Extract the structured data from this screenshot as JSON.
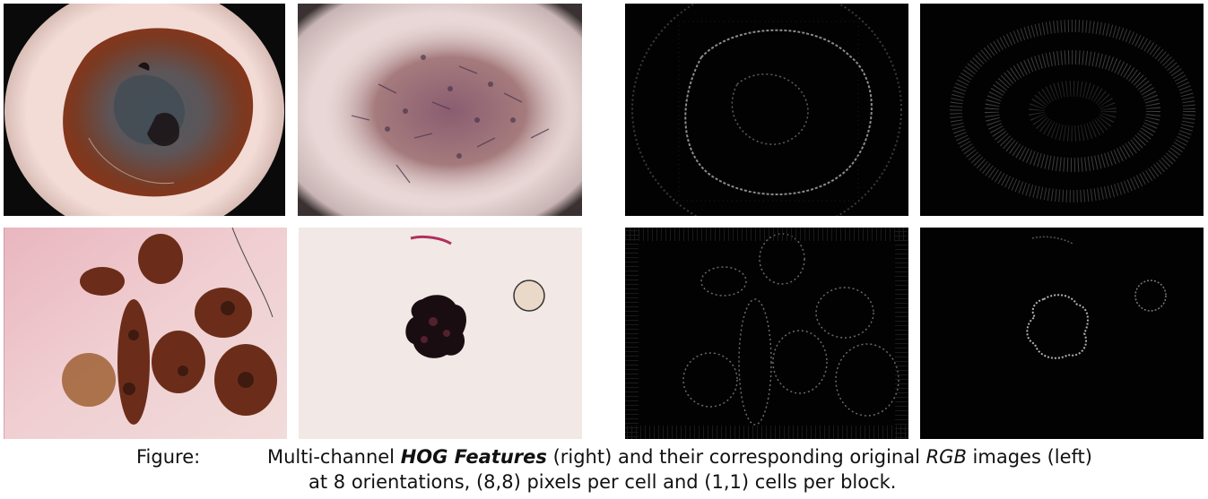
{
  "figure": {
    "images": [
      {
        "kind": "rgb",
        "icon": "dermoscopy-lesion-1"
      },
      {
        "kind": "rgb",
        "icon": "dermoscopy-lesion-2"
      },
      {
        "kind": "hog",
        "icon": "hog-feature-map-1"
      },
      {
        "kind": "hog",
        "icon": "hog-feature-map-2"
      },
      {
        "kind": "rgb",
        "icon": "dermoscopy-lesion-3"
      },
      {
        "kind": "rgb",
        "icon": "dermoscopy-lesion-4"
      },
      {
        "kind": "hog",
        "icon": "hog-feature-map-3"
      },
      {
        "kind": "hog",
        "icon": "hog-feature-map-4"
      }
    ]
  },
  "caption": {
    "label": "Figure:",
    "line1_pre": "Multi-channel ",
    "line1_emph": "HOG Features",
    "line1_mid": " (right) and their corresponding original ",
    "line1_rgb": "RGB",
    "line1_post": " images (left)",
    "line2": "at 8 orientations, (8,8) pixels per cell and (1,1) cells per block."
  }
}
